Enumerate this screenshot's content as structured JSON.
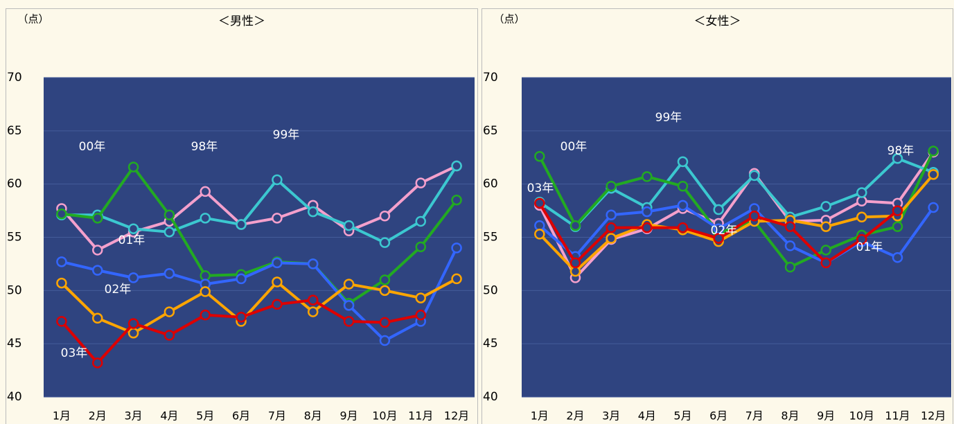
{
  "chart_data": [
    {
      "type": "line",
      "title": "＜男性＞",
      "y_label": "（点）",
      "categories": [
        "1月",
        "2月",
        "3月",
        "4月",
        "5月",
        "6月",
        "7月",
        "8月",
        "9月",
        "10月",
        "11月",
        "12月"
      ],
      "ylim": [
        40,
        70
      ],
      "yticks": [
        40,
        45,
        50,
        55,
        60,
        65,
        70
      ],
      "grid": true,
      "annotations": [
        "00年",
        "98年",
        "99年",
        "01年",
        "02年",
        "03年"
      ],
      "series": [
        {
          "color": "#f4a0cc",
          "values": [
            57.7,
            53.8,
            55.5,
            56.5,
            59.3,
            56.2,
            56.8,
            58.0,
            55.6,
            57.0,
            60.1,
            61.7
          ]
        },
        {
          "color": "#3cc8d0",
          "values": [
            57.1,
            57.1,
            55.8,
            55.5,
            56.8,
            56.2,
            60.4,
            57.4,
            56.1,
            54.5,
            56.5,
            61.7
          ]
        },
        {
          "color": "#22aa22",
          "values": [
            57.2,
            56.8,
            61.6,
            57.1,
            51.4,
            51.5,
            52.7,
            52.5,
            48.8,
            51.0,
            54.1,
            58.5
          ]
        },
        {
          "color": "#3366ff",
          "values": [
            52.7,
            51.9,
            51.2,
            51.6,
            50.6,
            51.1,
            52.6,
            52.5,
            48.6,
            45.3,
            47.1,
            54.0
          ]
        },
        {
          "color": "#ffa500",
          "values": [
            50.7,
            47.4,
            46.0,
            48.0,
            49.9,
            47.1,
            50.8,
            48.0,
            50.6,
            50.0,
            49.3,
            51.1
          ]
        },
        {
          "color": "#dd0000",
          "values": [
            47.1,
            43.2,
            46.9,
            45.8,
            47.7,
            47.5,
            48.7,
            49.1,
            47.1,
            47.0,
            47.7,
            null
          ]
        }
      ]
    },
    {
      "type": "line",
      "title": "＜女性＞",
      "y_label": "（点）",
      "categories": [
        "1月",
        "2月",
        "3月",
        "4月",
        "5月",
        "6月",
        "7月",
        "8月",
        "9月",
        "10月",
        "11月",
        "12月"
      ],
      "ylim": [
        40,
        70
      ],
      "yticks": [
        40,
        45,
        50,
        55,
        60,
        65,
        70
      ],
      "grid": true,
      "annotations": [
        "99年",
        "00年",
        "03年",
        "02年",
        "01年",
        "98年"
      ],
      "series": [
        {
          "color": "#f4a0cc",
          "values": [
            58.0,
            51.2,
            54.8,
            55.8,
            57.7,
            56.3,
            61.0,
            56.5,
            56.6,
            58.4,
            58.2,
            63.0
          ]
        },
        {
          "color": "#3cc8d0",
          "values": [
            58.3,
            56.0,
            59.6,
            57.8,
            62.1,
            57.6,
            60.8,
            56.9,
            57.9,
            59.2,
            62.4,
            61.1
          ]
        },
        {
          "color": "#22aa22",
          "values": [
            62.6,
            56.1,
            59.8,
            60.7,
            59.8,
            55.4,
            56.5,
            52.2,
            53.8,
            55.2,
            56.0,
            63.1
          ]
        },
        {
          "color": "#3366ff",
          "values": [
            56.1,
            53.2,
            57.1,
            57.4,
            58.0,
            55.8,
            57.7,
            54.2,
            52.6,
            54.6,
            53.1,
            57.8
          ]
        },
        {
          "color": "#ffa500",
          "values": [
            55.3,
            51.8,
            54.9,
            56.2,
            55.7,
            54.6,
            56.5,
            56.6,
            56.0,
            56.9,
            57.0,
            60.9
          ]
        },
        {
          "color": "#dd0000",
          "values": [
            58.2,
            52.6,
            55.9,
            55.9,
            55.9,
            54.9,
            57.0,
            56.0,
            52.6,
            54.8,
            57.5,
            null
          ]
        }
      ]
    }
  ]
}
